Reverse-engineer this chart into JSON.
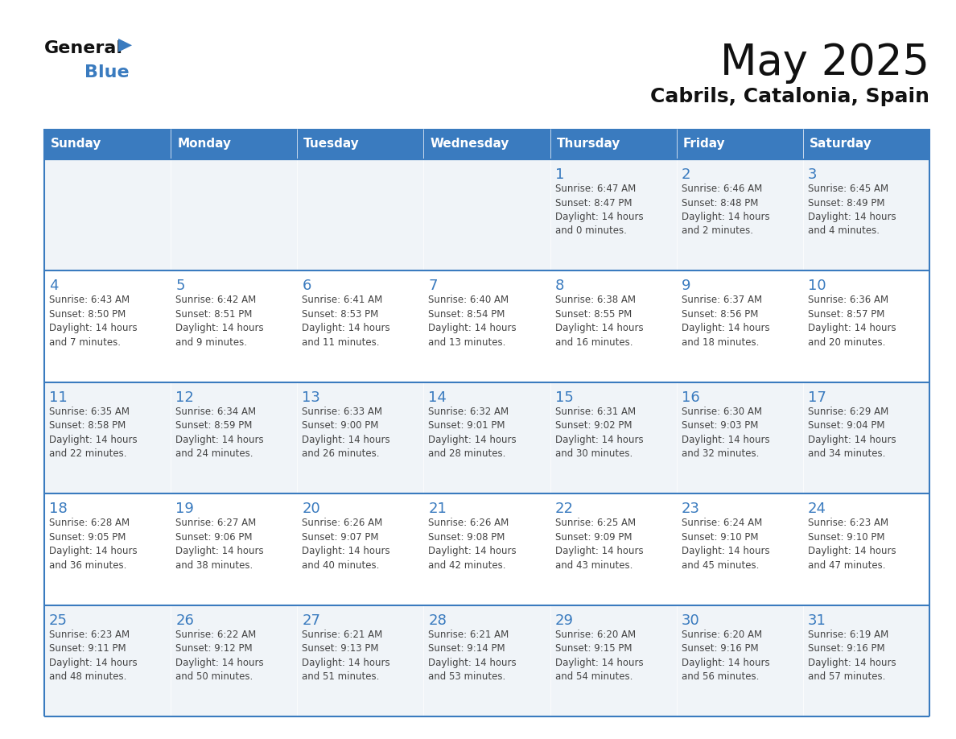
{
  "title": "May 2025",
  "subtitle": "Cabrils, Catalonia, Spain",
  "header_color": "#3a7bbf",
  "header_text_color": "#ffffff",
  "cell_bg_light": "#f0f4f8",
  "cell_bg_white": "#ffffff",
  "day_number_color": "#3a7bbf",
  "text_color": "#444444",
  "line_color": "#3a7bbf",
  "days_of_week": [
    "Sunday",
    "Monday",
    "Tuesday",
    "Wednesday",
    "Thursday",
    "Friday",
    "Saturday"
  ],
  "weeks": [
    [
      {
        "day": "",
        "info": ""
      },
      {
        "day": "",
        "info": ""
      },
      {
        "day": "",
        "info": ""
      },
      {
        "day": "",
        "info": ""
      },
      {
        "day": "1",
        "info": "Sunrise: 6:47 AM\nSunset: 8:47 PM\nDaylight: 14 hours\nand 0 minutes."
      },
      {
        "day": "2",
        "info": "Sunrise: 6:46 AM\nSunset: 8:48 PM\nDaylight: 14 hours\nand 2 minutes."
      },
      {
        "day": "3",
        "info": "Sunrise: 6:45 AM\nSunset: 8:49 PM\nDaylight: 14 hours\nand 4 minutes."
      }
    ],
    [
      {
        "day": "4",
        "info": "Sunrise: 6:43 AM\nSunset: 8:50 PM\nDaylight: 14 hours\nand 7 minutes."
      },
      {
        "day": "5",
        "info": "Sunrise: 6:42 AM\nSunset: 8:51 PM\nDaylight: 14 hours\nand 9 minutes."
      },
      {
        "day": "6",
        "info": "Sunrise: 6:41 AM\nSunset: 8:53 PM\nDaylight: 14 hours\nand 11 minutes."
      },
      {
        "day": "7",
        "info": "Sunrise: 6:40 AM\nSunset: 8:54 PM\nDaylight: 14 hours\nand 13 minutes."
      },
      {
        "day": "8",
        "info": "Sunrise: 6:38 AM\nSunset: 8:55 PM\nDaylight: 14 hours\nand 16 minutes."
      },
      {
        "day": "9",
        "info": "Sunrise: 6:37 AM\nSunset: 8:56 PM\nDaylight: 14 hours\nand 18 minutes."
      },
      {
        "day": "10",
        "info": "Sunrise: 6:36 AM\nSunset: 8:57 PM\nDaylight: 14 hours\nand 20 minutes."
      }
    ],
    [
      {
        "day": "11",
        "info": "Sunrise: 6:35 AM\nSunset: 8:58 PM\nDaylight: 14 hours\nand 22 minutes."
      },
      {
        "day": "12",
        "info": "Sunrise: 6:34 AM\nSunset: 8:59 PM\nDaylight: 14 hours\nand 24 minutes."
      },
      {
        "day": "13",
        "info": "Sunrise: 6:33 AM\nSunset: 9:00 PM\nDaylight: 14 hours\nand 26 minutes."
      },
      {
        "day": "14",
        "info": "Sunrise: 6:32 AM\nSunset: 9:01 PM\nDaylight: 14 hours\nand 28 minutes."
      },
      {
        "day": "15",
        "info": "Sunrise: 6:31 AM\nSunset: 9:02 PM\nDaylight: 14 hours\nand 30 minutes."
      },
      {
        "day": "16",
        "info": "Sunrise: 6:30 AM\nSunset: 9:03 PM\nDaylight: 14 hours\nand 32 minutes."
      },
      {
        "day": "17",
        "info": "Sunrise: 6:29 AM\nSunset: 9:04 PM\nDaylight: 14 hours\nand 34 minutes."
      }
    ],
    [
      {
        "day": "18",
        "info": "Sunrise: 6:28 AM\nSunset: 9:05 PM\nDaylight: 14 hours\nand 36 minutes."
      },
      {
        "day": "19",
        "info": "Sunrise: 6:27 AM\nSunset: 9:06 PM\nDaylight: 14 hours\nand 38 minutes."
      },
      {
        "day": "20",
        "info": "Sunrise: 6:26 AM\nSunset: 9:07 PM\nDaylight: 14 hours\nand 40 minutes."
      },
      {
        "day": "21",
        "info": "Sunrise: 6:26 AM\nSunset: 9:08 PM\nDaylight: 14 hours\nand 42 minutes."
      },
      {
        "day": "22",
        "info": "Sunrise: 6:25 AM\nSunset: 9:09 PM\nDaylight: 14 hours\nand 43 minutes."
      },
      {
        "day": "23",
        "info": "Sunrise: 6:24 AM\nSunset: 9:10 PM\nDaylight: 14 hours\nand 45 minutes."
      },
      {
        "day": "24",
        "info": "Sunrise: 6:23 AM\nSunset: 9:10 PM\nDaylight: 14 hours\nand 47 minutes."
      }
    ],
    [
      {
        "day": "25",
        "info": "Sunrise: 6:23 AM\nSunset: 9:11 PM\nDaylight: 14 hours\nand 48 minutes."
      },
      {
        "day": "26",
        "info": "Sunrise: 6:22 AM\nSunset: 9:12 PM\nDaylight: 14 hours\nand 50 minutes."
      },
      {
        "day": "27",
        "info": "Sunrise: 6:21 AM\nSunset: 9:13 PM\nDaylight: 14 hours\nand 51 minutes."
      },
      {
        "day": "28",
        "info": "Sunrise: 6:21 AM\nSunset: 9:14 PM\nDaylight: 14 hours\nand 53 minutes."
      },
      {
        "day": "29",
        "info": "Sunrise: 6:20 AM\nSunset: 9:15 PM\nDaylight: 14 hours\nand 54 minutes."
      },
      {
        "day": "30",
        "info": "Sunrise: 6:20 AM\nSunset: 9:16 PM\nDaylight: 14 hours\nand 56 minutes."
      },
      {
        "day": "31",
        "info": "Sunrise: 6:19 AM\nSunset: 9:16 PM\nDaylight: 14 hours\nand 57 minutes."
      }
    ]
  ],
  "logo_general_color": "#111111",
  "logo_blue_color": "#3a7bbf",
  "logo_triangle_color": "#3a7bbf",
  "title_fontsize": 38,
  "subtitle_fontsize": 18,
  "day_header_fontsize": 11,
  "day_number_fontsize": 13,
  "cell_text_fontsize": 8.5
}
